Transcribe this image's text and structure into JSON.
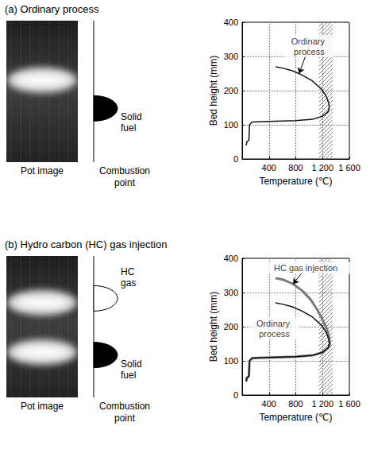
{
  "panels": [
    {
      "title": "(a) Ordinary process",
      "pot_caption": "Pot image",
      "combustion_caption": "Combustion point",
      "combustion_zones": [
        {
          "label": "Solid fuel",
          "style": "filled"
        }
      ]
    },
    {
      "title": "(b) Hydro carbon (HC) gas injection",
      "pot_caption": "Pot image",
      "combustion_caption": "Combustion point",
      "combustion_zones": [
        {
          "label": "HC gas",
          "style": "outline"
        },
        {
          "label": "Solid fuel",
          "style": "filled"
        }
      ]
    }
  ],
  "chart_data": [
    {
      "type": "line",
      "xlabel": "Temperature (℃)",
      "ylabel": "Bed height (mm)",
      "xlim": [
        0,
        1600
      ],
      "xticks": [
        400,
        800,
        {
          "value": 1200,
          "label": "1 200"
        },
        {
          "value": 1600,
          "label": "1 600"
        }
      ],
      "ylim": [
        0,
        400
      ],
      "yticks": [
        0,
        100,
        200,
        300,
        400
      ],
      "grid": true,
      "shaded_band": [
        1150,
        1350
      ],
      "series": [
        {
          "name": "Ordinary process",
          "color": "#111111",
          "x": [
            60,
            70,
            100,
            110,
            150,
            400,
            800,
            1050,
            1200,
            1280,
            1300,
            1290,
            1250,
            1180,
            1050,
            900,
            750,
            600,
            500
          ],
          "values": [
            40,
            50,
            55,
            100,
            108,
            110,
            112,
            116,
            125,
            138,
            150,
            165,
            185,
            205,
            228,
            245,
            258,
            266,
            270
          ]
        }
      ],
      "annotations": [
        {
          "text": "Ordinary process",
          "x": 1000,
          "y": 330,
          "arrow_to": [
            850,
            250
          ]
        }
      ]
    },
    {
      "type": "line",
      "xlabel": "Temperature (℃)",
      "ylabel": "Bed height (mm)",
      "xlim": [
        0,
        1600
      ],
      "xticks": [
        400,
        800,
        {
          "value": 1200,
          "label": "1 200"
        },
        {
          "value": 1600,
          "label": "1 600"
        }
      ],
      "ylim": [
        0,
        400
      ],
      "yticks": [
        0,
        100,
        200,
        300,
        400
      ],
      "grid": true,
      "shaded_band": [
        1150,
        1350
      ],
      "series": [
        {
          "name": "HC gas injection",
          "color": "#7a7a7a",
          "x": [
            60,
            70,
            100,
            110,
            150,
            400,
            800,
            1050,
            1200,
            1290,
            1310,
            1300,
            1260,
            1200,
            1120,
            1020,
            900,
            760,
            620,
            500
          ],
          "values": [
            40,
            50,
            55,
            100,
            108,
            110,
            112,
            116,
            125,
            138,
            150,
            168,
            195,
            220,
            250,
            280,
            305,
            325,
            337,
            342
          ]
        },
        {
          "name": "Ordinary process",
          "color": "#111111",
          "x": [
            60,
            70,
            100,
            110,
            150,
            400,
            800,
            1050,
            1200,
            1280,
            1300,
            1290,
            1250,
            1180,
            1050,
            900,
            750,
            600,
            500
          ],
          "values": [
            40,
            50,
            55,
            100,
            108,
            110,
            112,
            116,
            125,
            138,
            150,
            165,
            185,
            205,
            228,
            245,
            258,
            266,
            270
          ]
        }
      ],
      "annotations": [
        {
          "text": "HC gas injection",
          "x": 950,
          "y": 372,
          "arrow_to": [
            760,
            325
          ]
        },
        {
          "text": "Ordinary process",
          "x": 480,
          "y": 195
        }
      ]
    }
  ]
}
